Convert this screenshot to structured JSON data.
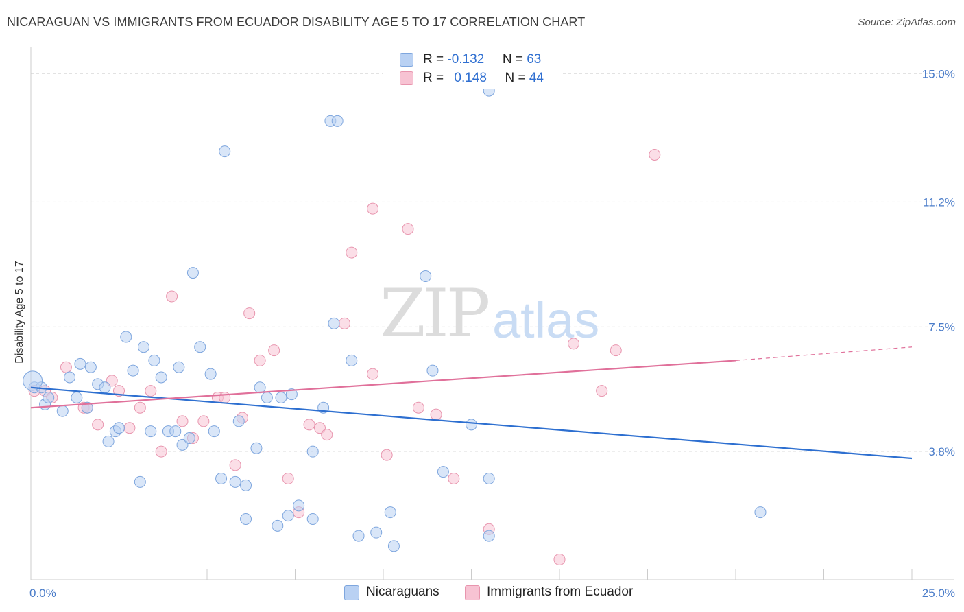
{
  "title": "NICARAGUAN VS IMMIGRANTS FROM ECUADOR DISABILITY AGE 5 TO 17 CORRELATION CHART",
  "source": "Source: ZipAtlas.com",
  "watermark": {
    "part1": "ZIP",
    "part2": "atlas"
  },
  "legend": {
    "rows": [
      {
        "r_label": "R = ",
        "r_value": "-0.132",
        "n_label": "N = ",
        "n_value": "63"
      },
      {
        "r_label": "R = ",
        "r_value": "0.148",
        "n_label": "N = ",
        "n_value": "44"
      }
    ]
  },
  "bottom_legend": [
    "Nicaraguans",
    "Immigrants from Ecuador"
  ],
  "colors": {
    "blue_fill": "#b9d1f3",
    "blue_stroke": "#7ea6de",
    "blue_line": "#2d6fd0",
    "pink_fill": "#f7c3d3",
    "pink_stroke": "#e895ae",
    "pink_line": "#e0709a",
    "tick_text": "#4a7cc9"
  },
  "chart_data": {
    "type": "scatter",
    "title": "NICARAGUAN VS IMMIGRANTS FROM ECUADOR DISABILITY AGE 5 TO 17 CORRELATION CHART",
    "xlabel": "",
    "ylabel": "Disability Age 5 to 17",
    "xlim": [
      0,
      25
    ],
    "ylim": [
      0,
      15.6
    ],
    "x_tick_labels": [
      "0.0%",
      "25.0%"
    ],
    "y_ticks": [
      3.8,
      7.5,
      11.2,
      15.0
    ],
    "y_tick_labels": [
      "3.8%",
      "7.5%",
      "11.2%",
      "15.0%"
    ],
    "grid": true,
    "legend_position": "top-center",
    "series": [
      {
        "name": "Nicaraguans",
        "points": [
          [
            0.1,
            5.7
          ],
          [
            0.3,
            5.7
          ],
          [
            0.4,
            5.2
          ],
          [
            0.5,
            5.4
          ],
          [
            0.9,
            5.0
          ],
          [
            1.1,
            6.0
          ],
          [
            1.4,
            6.4
          ],
          [
            1.3,
            5.4
          ],
          [
            1.6,
            5.1
          ],
          [
            1.7,
            6.3
          ],
          [
            1.9,
            5.8
          ],
          [
            2.1,
            5.7
          ],
          [
            2.2,
            4.1
          ],
          [
            2.4,
            4.4
          ],
          [
            2.5,
            4.5
          ],
          [
            2.7,
            7.2
          ],
          [
            2.9,
            6.2
          ],
          [
            3.1,
            2.9
          ],
          [
            3.2,
            6.9
          ],
          [
            3.4,
            4.4
          ],
          [
            3.5,
            6.5
          ],
          [
            3.7,
            6.0
          ],
          [
            3.9,
            4.4
          ],
          [
            4.1,
            4.4
          ],
          [
            4.2,
            6.3
          ],
          [
            4.3,
            4.0
          ],
          [
            4.5,
            4.2
          ],
          [
            4.6,
            9.1
          ],
          [
            4.8,
            6.9
          ],
          [
            5.1,
            6.1
          ],
          [
            5.2,
            4.4
          ],
          [
            5.4,
            3.0
          ],
          [
            5.5,
            12.7
          ],
          [
            5.8,
            2.9
          ],
          [
            5.9,
            4.7
          ],
          [
            6.1,
            2.8
          ],
          [
            6.1,
            1.8
          ],
          [
            6.4,
            3.9
          ],
          [
            6.5,
            5.7
          ],
          [
            6.7,
            5.4
          ],
          [
            7.0,
            1.6
          ],
          [
            7.1,
            5.4
          ],
          [
            7.3,
            1.9
          ],
          [
            7.4,
            5.5
          ],
          [
            7.6,
            2.2
          ],
          [
            8.0,
            1.8
          ],
          [
            8.0,
            3.8
          ],
          [
            8.3,
            5.1
          ],
          [
            8.6,
            7.6
          ],
          [
            8.5,
            13.6
          ],
          [
            8.7,
            13.6
          ],
          [
            9.1,
            6.5
          ],
          [
            9.3,
            1.3
          ],
          [
            9.8,
            1.4
          ],
          [
            10.3,
            1.0
          ],
          [
            10.2,
            2.0
          ],
          [
            11.2,
            9.0
          ],
          [
            11.4,
            6.2
          ],
          [
            11.7,
            3.2
          ],
          [
            12.5,
            4.6
          ],
          [
            13.0,
            1.3
          ],
          [
            13.0,
            3.0
          ],
          [
            20.7,
            2.0
          ],
          [
            13.0,
            14.5
          ],
          [
            0.05,
            5.9
          ]
        ]
      },
      {
        "name": "Immigrants from Ecuador",
        "points": [
          [
            0.1,
            5.6
          ],
          [
            0.4,
            5.6
          ],
          [
            0.6,
            5.4
          ],
          [
            1.0,
            6.3
          ],
          [
            1.5,
            5.1
          ],
          [
            1.6,
            5.1
          ],
          [
            1.9,
            4.6
          ],
          [
            2.3,
            5.9
          ],
          [
            2.5,
            5.6
          ],
          [
            2.8,
            4.5
          ],
          [
            3.1,
            5.1
          ],
          [
            3.4,
            5.6
          ],
          [
            3.7,
            3.8
          ],
          [
            4.0,
            8.4
          ],
          [
            4.3,
            4.7
          ],
          [
            4.6,
            4.2
          ],
          [
            4.9,
            4.7
          ],
          [
            5.3,
            5.4
          ],
          [
            5.5,
            5.4
          ],
          [
            5.8,
            3.4
          ],
          [
            6.0,
            4.8
          ],
          [
            6.2,
            7.9
          ],
          [
            6.5,
            6.5
          ],
          [
            6.9,
            6.8
          ],
          [
            7.3,
            3.0
          ],
          [
            7.6,
            2.0
          ],
          [
            7.9,
            4.6
          ],
          [
            8.2,
            4.5
          ],
          [
            8.4,
            4.3
          ],
          [
            8.9,
            7.6
          ],
          [
            9.1,
            9.7
          ],
          [
            9.7,
            6.1
          ],
          [
            9.7,
            11.0
          ],
          [
            10.1,
            3.7
          ],
          [
            10.7,
            10.4
          ],
          [
            11.0,
            5.1
          ],
          [
            11.5,
            4.9
          ],
          [
            12.0,
            3.0
          ],
          [
            13.0,
            1.5
          ],
          [
            15.0,
            0.6
          ],
          [
            15.4,
            7.0
          ],
          [
            16.2,
            5.6
          ],
          [
            16.6,
            6.8
          ],
          [
            17.7,
            12.6
          ]
        ]
      }
    ],
    "trend_lines": [
      {
        "series": "Nicaraguans",
        "x": [
          0,
          25
        ],
        "y": [
          5.7,
          3.6
        ]
      },
      {
        "series": "Immigrants from Ecuador",
        "x": [
          0,
          20
        ],
        "y": [
          5.1,
          6.5
        ],
        "dashed_extension_to": [
          25,
          6.9
        ]
      }
    ]
  }
}
